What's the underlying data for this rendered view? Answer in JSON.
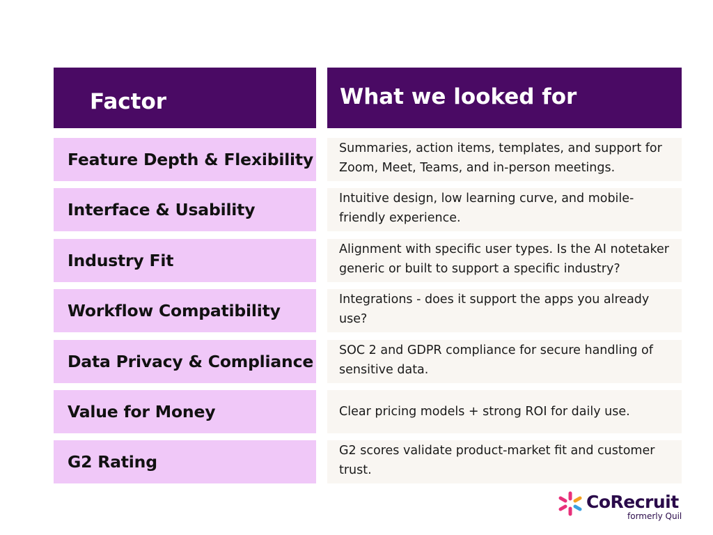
{
  "table": {
    "header": {
      "factor": "Factor",
      "what": "What we looked for"
    },
    "rows": [
      {
        "factor": "Feature Depth & Flexibility",
        "description": "Summaries, action items, templates, and support for Zoom, Meet, Teams, and in-person meetings."
      },
      {
        "factor": "Interface & Usability",
        "description": "Intuitive design, low learning curve, and mobile-friendly experience."
      },
      {
        "factor": "Industry Fit",
        "description": "Alignment with specific user types. Is the AI notetaker generic or built to support a specific industry?"
      },
      {
        "factor": "Workflow Compatibility",
        "description": "Integrations - does it support the apps you already use?"
      },
      {
        "factor": "Data Privacy & Compliance",
        "description": "SOC 2 and GDPR compliance for secure handling of sensitive data."
      },
      {
        "factor": "Value for Money",
        "description": "Clear pricing models + strong ROI for daily use."
      },
      {
        "factor": "G2 Rating",
        "description": "G2 scores validate product-market fit and customer trust."
      }
    ]
  },
  "logo": {
    "name": "CoRecruit",
    "subtitle": "formerly Quil",
    "icon": "corecruit-logo-icon"
  },
  "colors": {
    "header_bg": "#4a0a64",
    "factor_bg": "#f0c8f8",
    "desc_bg": "#f9f6f2",
    "logo_pink": "#e8307a",
    "logo_blue": "#3aa0e0",
    "logo_orange": "#f5a020"
  }
}
